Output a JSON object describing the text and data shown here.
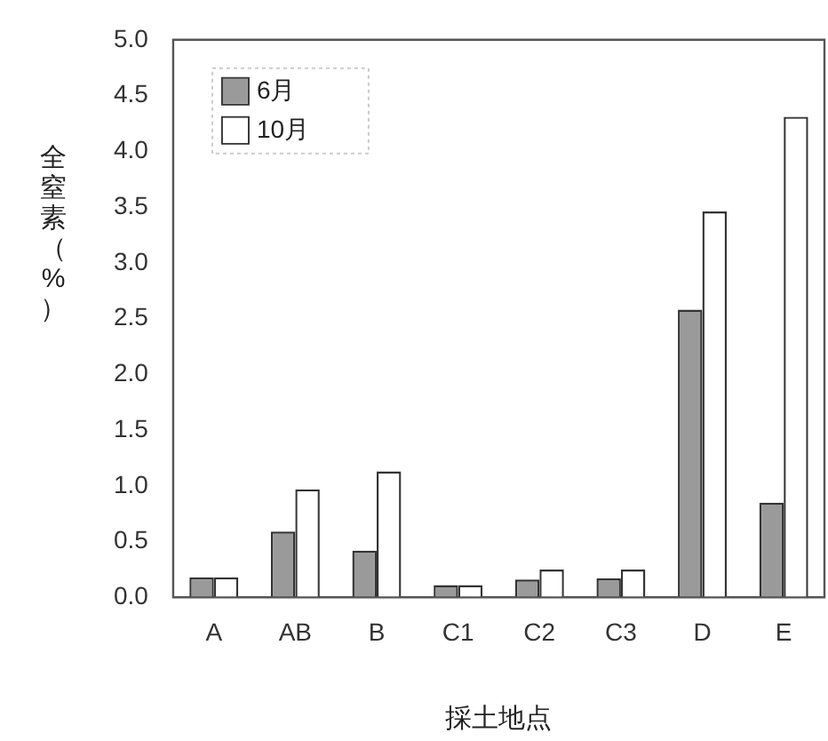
{
  "chart_data": {
    "type": "bar",
    "ylabel": "全窒素（%）",
    "xlabel": "採土地点",
    "categories": [
      "A",
      "AB",
      "B",
      "C1",
      "C2",
      "C3",
      "D",
      "E"
    ],
    "series": [
      {
        "name": "6月",
        "color": "#9a9a9a",
        "values": [
          0.18,
          0.59,
          0.42,
          0.11,
          0.16,
          0.17,
          2.58,
          0.85
        ]
      },
      {
        "name": "10月",
        "color": "#ffffff",
        "values": [
          0.18,
          0.97,
          1.13,
          0.11,
          0.25,
          0.25,
          3.46,
          4.31
        ]
      }
    ],
    "ylim": [
      0,
      5
    ],
    "yticks": [
      {
        "value": 0,
        "label": "0.0"
      },
      0.5,
      {
        "value": 1,
        "label": "1.0"
      },
      1.5,
      {
        "value": 2,
        "label": "2.0"
      },
      2.5,
      {
        "value": 3,
        "label": "3.0"
      },
      3.5,
      {
        "value": 4,
        "label": "4.0"
      },
      4.5,
      {
        "value": 5,
        "label": "5.0"
      }
    ],
    "grid": false,
    "legend": "top left"
  }
}
